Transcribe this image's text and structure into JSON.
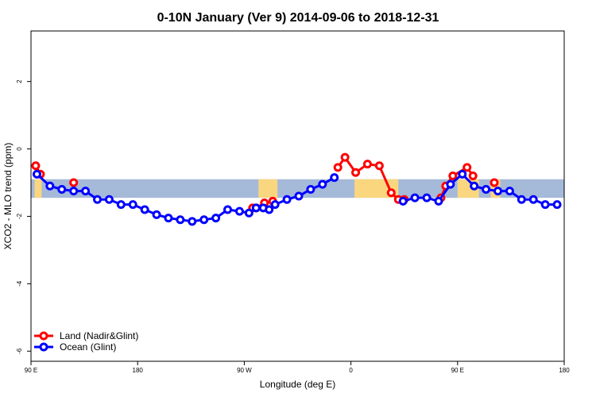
{
  "chart_data": {
    "type": "line",
    "title": "0-10N January (Ver 9)   2014-09-06 to 2018-12-31",
    "xlabel": "Longitude (deg E)",
    "ylabel": "XCO2 - MLO trend (ppm)",
    "xlim": [
      90,
      540
    ],
    "ylim": [
      -6.3,
      3.5
    ],
    "x_ticks": [
      90,
      180,
      270,
      360,
      450,
      540
    ],
    "x_tick_labels": [
      "90 E",
      "180",
      "90 W",
      "0",
      "90 E",
      "180"
    ],
    "y_ticks": [
      -6,
      -4,
      -2,
      0,
      2
    ],
    "y_tick_labels": [
      "-6",
      "-4",
      "-2",
      "0",
      "2"
    ],
    "grid": false,
    "legend_position": "bottom-left",
    "latitude_band": {
      "ymin": -1.45,
      "ymax": -0.9,
      "color": "#a5b9d9"
    },
    "land_color": "#fad67f",
    "land_segments": [
      [
        93,
        99
      ],
      [
        282,
        298
      ],
      [
        363,
        400
      ],
      [
        450,
        468
      ],
      [
        478,
        486
      ]
    ],
    "series": [
      {
        "name": "Land (Nadir&Glint)",
        "color": "#ff0000",
        "segments": [
          [
            [
              94,
              -0.5
            ],
            [
              98,
              -0.75
            ]
          ],
          [
            [
              126,
              -1.0
            ]
          ],
          [
            [
              277,
              -1.75
            ],
            [
              280,
              -1.75
            ],
            [
              287,
              -1.6
            ],
            [
              294,
              -1.55
            ]
          ],
          [
            [
              349,
              -0.55
            ],
            [
              355,
              -0.25
            ],
            [
              364,
              -0.7
            ],
            [
              374,
              -0.45
            ],
            [
              384,
              -0.5
            ],
            [
              394,
              -1.3
            ],
            [
              400,
              -1.5
            ],
            [
              405,
              -1.5
            ]
          ],
          [
            [
              436,
              -1.45
            ],
            [
              440,
              -1.1
            ],
            [
              446,
              -0.8
            ],
            [
              458,
              -0.55
            ],
            [
              463,
              -0.8
            ]
          ],
          [
            [
              481,
              -1.0
            ]
          ]
        ]
      },
      {
        "name": "Ocean (Glint)",
        "color": "#0000ff",
        "segments": [
          [
            [
              95,
              -0.75
            ],
            [
              106,
              -1.1
            ],
            [
              116,
              -1.2
            ],
            [
              126,
              -1.25
            ],
            [
              136,
              -1.25
            ],
            [
              146,
              -1.5
            ],
            [
              156,
              -1.5
            ],
            [
              166,
              -1.65
            ],
            [
              176,
              -1.65
            ],
            [
              186,
              -1.8
            ],
            [
              196,
              -1.95
            ],
            [
              206,
              -2.05
            ],
            [
              216,
              -2.1
            ],
            [
              226,
              -2.15
            ],
            [
              236,
              -2.1
            ],
            [
              246,
              -2.05
            ],
            [
              256,
              -1.8
            ],
            [
              266,
              -1.85
            ],
            [
              274,
              -1.9
            ],
            [
              280,
              -1.75
            ],
            [
              286,
              -1.75
            ],
            [
              291,
              -1.8
            ],
            [
              296,
              -1.65
            ],
            [
              306,
              -1.5
            ],
            [
              316,
              -1.4
            ],
            [
              326,
              -1.2
            ],
            [
              336,
              -1.05
            ],
            [
              346,
              -0.85
            ]
          ],
          [
            [
              404,
              -1.55
            ],
            [
              414,
              -1.45
            ],
            [
              424,
              -1.45
            ],
            [
              434,
              -1.55
            ],
            [
              444,
              -1.05
            ],
            [
              454,
              -0.75
            ],
            [
              464,
              -1.1
            ],
            [
              474,
              -1.2
            ],
            [
              484,
              -1.25
            ],
            [
              494,
              -1.25
            ],
            [
              504,
              -1.5
            ],
            [
              514,
              -1.5
            ],
            [
              524,
              -1.65
            ],
            [
              534,
              -1.65
            ]
          ]
        ]
      }
    ]
  }
}
